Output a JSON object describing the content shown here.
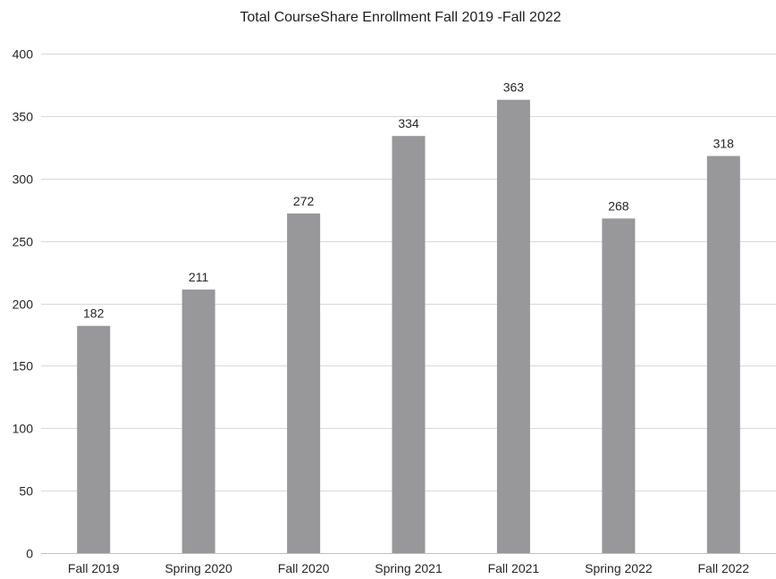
{
  "chart_data": {
    "type": "bar",
    "title": "Total CourseShare Enrollment Fall 2019 -Fall 2022",
    "xlabel": "",
    "ylabel": "",
    "categories": [
      "Fall 2019",
      "Spring 2020",
      "Fall 2020",
      "Spring 2021",
      "Fall 2021",
      "Spring 2022",
      "Fall 2022"
    ],
    "series": [
      {
        "values": [
          182,
          211,
          272,
          334,
          363,
          268,
          318
        ]
      }
    ],
    "data_labels": [
      "182",
      "211",
      "272",
      "334",
      "363",
      "268",
      "318"
    ],
    "ylim": [
      0,
      400
    ],
    "yticks": [
      0,
      50,
      100,
      150,
      200,
      250,
      300,
      350,
      400
    ],
    "ytick_labels": [
      "0",
      "50",
      "100",
      "150",
      "200",
      "250",
      "300",
      "350",
      "400"
    ],
    "grid": true,
    "legend": "none",
    "bar_color": "#98989b",
    "grid_color": "#d9d9d9"
  }
}
